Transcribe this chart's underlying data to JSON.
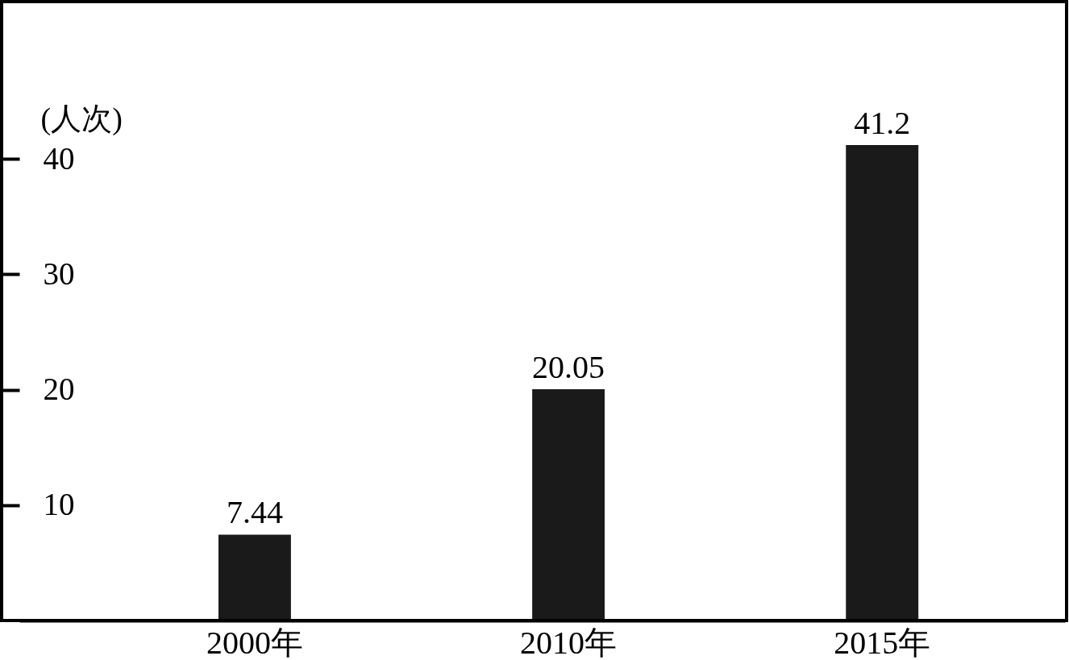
{
  "chart_data": {
    "type": "bar",
    "ylabel": "(人次)",
    "categories": [
      "2000年",
      "2010年",
      "2015年"
    ],
    "values": [
      7.44,
      20.05,
      41.2
    ],
    "color": "#1a1a1a",
    "ylim": [
      0,
      53.5
    ],
    "yticks": [
      10,
      20,
      30,
      40
    ],
    "data_labels": true
  }
}
